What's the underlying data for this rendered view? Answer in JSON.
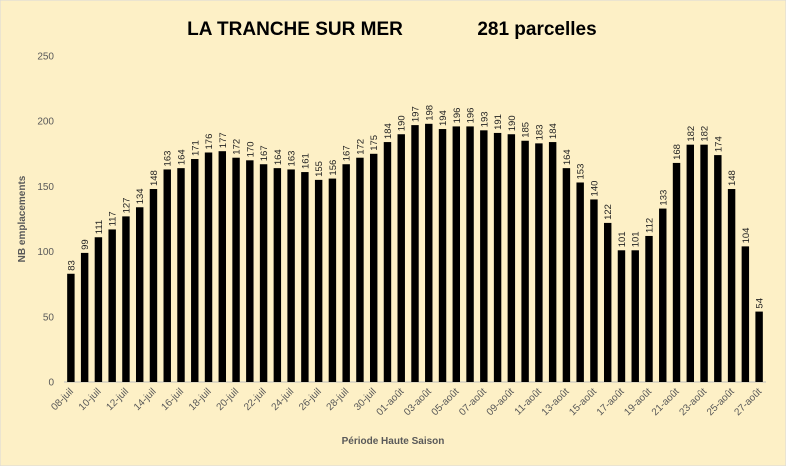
{
  "chart_data": {
    "type": "bar",
    "title": "LA TRANCHE SUR MER",
    "subtitle": "281 parcelles",
    "x_label": "Période Haute Saison",
    "y_label": "NB emplacements",
    "categories": [
      "08-juil",
      null,
      "10-juil",
      null,
      "12-juil",
      null,
      "14-juil",
      null,
      "16-juil",
      null,
      "18-juil",
      null,
      "20-juil",
      null,
      "22-juil",
      null,
      "24-juil",
      null,
      "26-juil",
      null,
      "28-juil",
      null,
      "30-juil",
      null,
      "01-août",
      null,
      "03-août",
      null,
      "05-août",
      null,
      "07-août",
      null,
      "09-août",
      null,
      "11-août",
      null,
      "13-août",
      null,
      "15-août",
      null,
      "17-août",
      null,
      "19-août",
      null,
      "21-août",
      null,
      "23-août",
      null,
      "25-août",
      null,
      "27-août"
    ],
    "values": [
      83,
      99,
      111,
      117,
      127,
      134,
      148,
      163,
      164,
      171,
      176,
      177,
      172,
      170,
      167,
      164,
      163,
      161,
      155,
      156,
      167,
      172,
      175,
      184,
      190,
      197,
      198,
      194,
      196,
      196,
      193,
      191,
      190,
      185,
      183,
      184,
      164,
      153,
      140,
      122,
      101,
      101,
      112,
      133,
      168,
      182,
      182,
      174,
      148,
      104,
      54
    ],
    "color": "#000000",
    "ylim": [
      0,
      250
    ],
    "yticks": [
      0,
      50,
      100,
      150,
      200,
      250
    ],
    "grid": false
  }
}
